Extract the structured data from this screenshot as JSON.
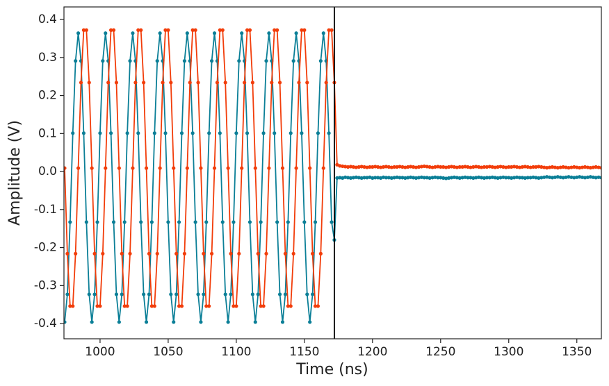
{
  "chart_data": {
    "type": "line",
    "xlabel": "Time (ns)",
    "ylabel": "Amplitude (V)",
    "xlim": [
      973.5,
      1368
    ],
    "ylim": [
      -0.44,
      0.433
    ],
    "xticks": [
      1000,
      1050,
      1100,
      1150,
      1200,
      1250,
      1300,
      1350
    ],
    "yticks": [
      -0.4,
      -0.3,
      -0.2,
      -0.1,
      {
        "value": 0,
        "label": "0.0"
      },
      0.1,
      0.2,
      0.3,
      0.4
    ],
    "vline_x": 1172,
    "x": [
      974,
      976,
      978,
      980,
      982,
      984,
      986,
      988,
      990,
      992,
      994,
      996,
      998,
      1000,
      1002,
      1004,
      1006,
      1008,
      1010,
      1012,
      1014,
      1016,
      1018,
      1020,
      1022,
      1024,
      1026,
      1028,
      1030,
      1032,
      1034,
      1036,
      1038,
      1040,
      1042,
      1044,
      1046,
      1048,
      1050,
      1052,
      1054,
      1056,
      1058,
      1060,
      1062,
      1064,
      1066,
      1068,
      1070,
      1072,
      1074,
      1076,
      1078,
      1080,
      1082,
      1084,
      1086,
      1088,
      1090,
      1092,
      1094,
      1096,
      1098,
      1100,
      1102,
      1104,
      1106,
      1108,
      1110,
      1112,
      1114,
      1116,
      1118,
      1120,
      1122,
      1124,
      1126,
      1128,
      1130,
      1132,
      1134,
      1136,
      1138,
      1140,
      1142,
      1144,
      1146,
      1148,
      1150,
      1152,
      1154,
      1156,
      1158,
      1160,
      1162,
      1164,
      1166,
      1168,
      1170,
      1172,
      1174,
      1176,
      1178,
      1180,
      1182,
      1184,
      1186,
      1188,
      1190,
      1192,
      1194,
      1196,
      1198,
      1200,
      1202,
      1204,
      1206,
      1208,
      1210,
      1212,
      1214,
      1216,
      1218,
      1220,
      1222,
      1224,
      1226,
      1228,
      1230,
      1232,
      1234,
      1236,
      1238,
      1240,
      1242,
      1244,
      1246,
      1248,
      1250,
      1252,
      1254,
      1256,
      1258,
      1260,
      1262,
      1264,
      1266,
      1268,
      1270,
      1272,
      1274,
      1276,
      1278,
      1280,
      1282,
      1284,
      1286,
      1288,
      1290,
      1292,
      1294,
      1296,
      1298,
      1300,
      1302,
      1304,
      1306,
      1308,
      1310,
      1312,
      1314,
      1316,
      1318,
      1320,
      1322,
      1324,
      1326,
      1328,
      1330,
      1332,
      1334,
      1336,
      1338,
      1340,
      1342,
      1344,
      1346,
      1348,
      1350,
      1352,
      1354,
      1356,
      1358,
      1360,
      1362,
      1364,
      1366,
      1368
    ],
    "series": [
      {
        "color": "#0b7f97",
        "values": [
          -0.396,
          -0.323,
          -0.133,
          0.101,
          0.291,
          0.364,
          0.291,
          0.101,
          -0.133,
          -0.323,
          -0.396,
          -0.323,
          -0.133,
          0.101,
          0.291,
          0.364,
          0.291,
          0.101,
          -0.133,
          -0.323,
          -0.396,
          -0.323,
          -0.133,
          0.101,
          0.291,
          0.364,
          0.291,
          0.101,
          -0.133,
          -0.323,
          -0.396,
          -0.323,
          -0.133,
          0.101,
          0.291,
          0.364,
          0.291,
          0.101,
          -0.133,
          -0.323,
          -0.396,
          -0.323,
          -0.133,
          0.101,
          0.291,
          0.364,
          0.291,
          0.101,
          -0.133,
          -0.323,
          -0.396,
          -0.323,
          -0.133,
          0.101,
          0.291,
          0.364,
          0.291,
          0.101,
          -0.133,
          -0.323,
          -0.396,
          -0.323,
          -0.133,
          0.101,
          0.291,
          0.364,
          0.291,
          0.101,
          -0.133,
          -0.323,
          -0.396,
          -0.323,
          -0.133,
          0.101,
          0.291,
          0.364,
          0.291,
          0.101,
          -0.133,
          -0.323,
          -0.396,
          -0.323,
          -0.133,
          0.101,
          0.291,
          0.364,
          0.291,
          0.101,
          -0.133,
          -0.323,
          -0.396,
          -0.323,
          -0.133,
          0.101,
          0.291,
          0.364,
          0.291,
          0.101,
          -0.133,
          -0.18,
          -0.017,
          -0.016,
          -0.017,
          -0.015,
          -0.016,
          -0.017,
          -0.016,
          -0.015,
          -0.016,
          -0.017,
          -0.016,
          -0.016,
          -0.015,
          -0.017,
          -0.016,
          -0.016,
          -0.017,
          -0.015,
          -0.016,
          -0.016,
          -0.017,
          -0.016,
          -0.015,
          -0.016,
          -0.016,
          -0.017,
          -0.016,
          -0.015,
          -0.016,
          -0.017,
          -0.016,
          -0.015,
          -0.016,
          -0.016,
          -0.017,
          -0.016,
          -0.015,
          -0.016,
          -0.016,
          -0.017,
          -0.018,
          -0.017,
          -0.016,
          -0.015,
          -0.016,
          -0.017,
          -0.016,
          -0.015,
          -0.016,
          -0.016,
          -0.017,
          -0.016,
          -0.015,
          -0.016,
          -0.017,
          -0.016,
          -0.016,
          -0.015,
          -0.016,
          -0.017,
          -0.016,
          -0.015,
          -0.016,
          -0.016,
          -0.017,
          -0.016,
          -0.015,
          -0.016,
          -0.016,
          -0.017,
          -0.016,
          -0.016,
          -0.015,
          -0.016,
          -0.017,
          -0.016,
          -0.015,
          -0.014,
          -0.015,
          -0.016,
          -0.015,
          -0.014,
          -0.015,
          -0.016,
          -0.015,
          -0.014,
          -0.015,
          -0.016,
          -0.015,
          -0.014,
          -0.015,
          -0.016,
          -0.015,
          -0.014,
          -0.015,
          -0.016,
          -0.015,
          -0.016
        ]
      },
      {
        "color": "#f23d0a",
        "values": [
          0.009,
          -0.216,
          -0.354,
          -0.354,
          -0.216,
          0.009,
          0.234,
          0.372,
          0.372,
          0.234,
          0.009,
          -0.216,
          -0.354,
          -0.354,
          -0.216,
          0.009,
          0.234,
          0.372,
          0.372,
          0.234,
          0.009,
          -0.216,
          -0.354,
          -0.354,
          -0.216,
          0.009,
          0.234,
          0.372,
          0.372,
          0.234,
          0.009,
          -0.216,
          -0.354,
          -0.354,
          -0.216,
          0.009,
          0.234,
          0.372,
          0.372,
          0.234,
          0.009,
          -0.216,
          -0.354,
          -0.354,
          -0.216,
          0.009,
          0.234,
          0.372,
          0.372,
          0.234,
          0.009,
          -0.216,
          -0.354,
          -0.354,
          -0.216,
          0.009,
          0.234,
          0.372,
          0.372,
          0.234,
          0.009,
          -0.216,
          -0.354,
          -0.354,
          -0.216,
          0.009,
          0.234,
          0.372,
          0.372,
          0.234,
          0.009,
          -0.216,
          -0.354,
          -0.354,
          -0.216,
          0.009,
          0.234,
          0.372,
          0.372,
          0.234,
          0.009,
          -0.216,
          -0.354,
          -0.354,
          -0.216,
          0.009,
          0.234,
          0.372,
          0.372,
          0.234,
          0.009,
          -0.216,
          -0.354,
          -0.354,
          -0.216,
          0.009,
          0.234,
          0.372,
          0.372,
          0.234,
          0.018,
          0.015,
          0.014,
          0.013,
          0.012,
          0.013,
          0.012,
          0.011,
          0.012,
          0.013,
          0.012,
          0.011,
          0.012,
          0.012,
          0.013,
          0.012,
          0.011,
          0.012,
          0.013,
          0.012,
          0.011,
          0.012,
          0.012,
          0.013,
          0.012,
          0.011,
          0.012,
          0.013,
          0.012,
          0.011,
          0.012,
          0.013,
          0.014,
          0.013,
          0.012,
          0.011,
          0.012,
          0.013,
          0.012,
          0.012,
          0.011,
          0.012,
          0.013,
          0.012,
          0.011,
          0.012,
          0.012,
          0.013,
          0.012,
          0.011,
          0.012,
          0.013,
          0.012,
          0.011,
          0.012,
          0.012,
          0.013,
          0.012,
          0.011,
          0.012,
          0.013,
          0.012,
          0.011,
          0.012,
          0.012,
          0.013,
          0.012,
          0.011,
          0.012,
          0.013,
          0.012,
          0.011,
          0.012,
          0.012,
          0.013,
          0.012,
          0.011,
          0.01,
          0.011,
          0.012,
          0.011,
          0.01,
          0.011,
          0.012,
          0.011,
          0.01,
          0.011,
          0.012,
          0.011,
          0.01,
          0.011,
          0.012,
          0.011,
          0.01,
          0.011,
          0.012,
          0.011,
          0.01
        ]
      }
    ]
  }
}
